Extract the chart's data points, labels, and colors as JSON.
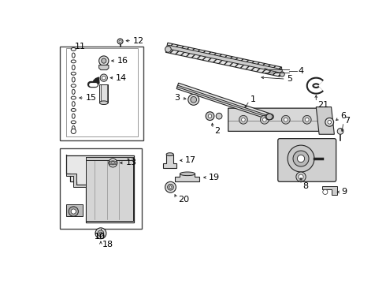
{
  "background_color": "#ffffff",
  "line_color": "#222222",
  "text_color": "#000000",
  "fig_width": 4.9,
  "fig_height": 3.6,
  "dpi": 100,
  "font_size": 8.0
}
